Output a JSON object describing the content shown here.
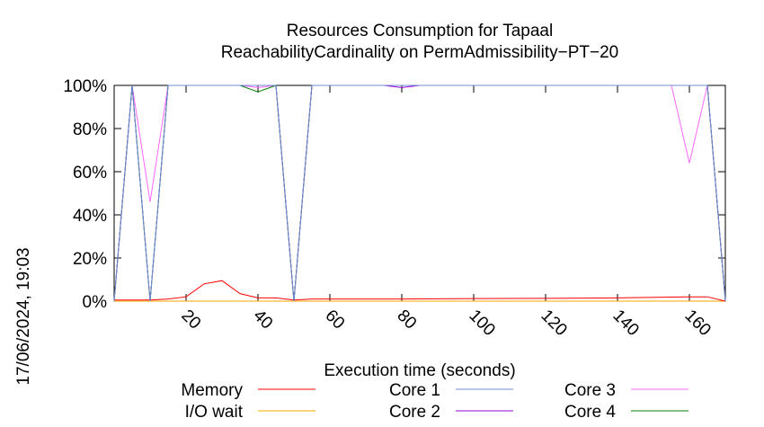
{
  "chart_data": {
    "type": "line",
    "title": "Resources Consumption for Tapaal",
    "subtitle": "ReachabilityCardinality on PermAdmissibility−PT−20",
    "xlabel": "Execution time (seconds)",
    "ylabel": "",
    "xlim": [
      0,
      170
    ],
    "ylim": [
      0,
      100
    ],
    "x_ticks": [
      20,
      40,
      60,
      80,
      100,
      120,
      140,
      160
    ],
    "y_ticks": [
      0,
      20,
      40,
      60,
      80,
      100
    ],
    "y_tick_labels": [
      "0%",
      "20%",
      "40%",
      "60%",
      "80%",
      "100%"
    ],
    "grid": false,
    "legend_position": "bottom",
    "timestamp": "17/06/2024, 19:03",
    "series": [
      {
        "name": "Memory",
        "color": "#ff0000",
        "x": [
          0,
          5,
          10,
          15,
          20,
          25,
          30,
          35,
          40,
          45,
          50,
          55,
          60,
          80,
          100,
          120,
          140,
          160,
          165,
          170
        ],
        "values": [
          0.5,
          0.5,
          0.5,
          1,
          2,
          8,
          9.5,
          3.5,
          1.5,
          1.5,
          0.5,
          1,
          1,
          1,
          1.2,
          1.3,
          1.5,
          2,
          2,
          0
        ]
      },
      {
        "name": "I/O wait",
        "color": "#ffa500",
        "x": [
          0,
          170
        ],
        "values": [
          0,
          0
        ]
      },
      {
        "name": "Core 1",
        "color": "#6f8cd6",
        "x": [
          0,
          5,
          10,
          15,
          20,
          40,
          45,
          50,
          55,
          80,
          165,
          170
        ],
        "values": [
          0,
          100,
          0,
          100,
          100,
          100,
          100,
          0,
          100,
          100,
          100,
          0
        ]
      },
      {
        "name": "Core 2",
        "color": "#9400d3",
        "x": [
          0,
          5,
          10,
          15,
          20,
          45,
          50,
          55,
          75,
          80,
          85,
          165,
          170
        ],
        "values": [
          0,
          100,
          0,
          100,
          100,
          100,
          0,
          100,
          100,
          99,
          100,
          100,
          0
        ]
      },
      {
        "name": "Core 3",
        "color": "#ff66ff",
        "x": [
          0,
          5,
          10,
          15,
          20,
          35,
          40,
          45,
          50,
          55,
          155,
          160,
          165,
          170
        ],
        "values": [
          0,
          100,
          46,
          100,
          100,
          100,
          99,
          100,
          0,
          100,
          100,
          64,
          100,
          0
        ]
      },
      {
        "name": "Core 4",
        "color": "#008000",
        "x": [
          0,
          5,
          10,
          15,
          20,
          35,
          40,
          45,
          50,
          55,
          165,
          170
        ],
        "values": [
          0,
          100,
          0,
          100,
          100,
          100,
          97,
          100,
          0,
          100,
          100,
          0
        ]
      }
    ]
  }
}
